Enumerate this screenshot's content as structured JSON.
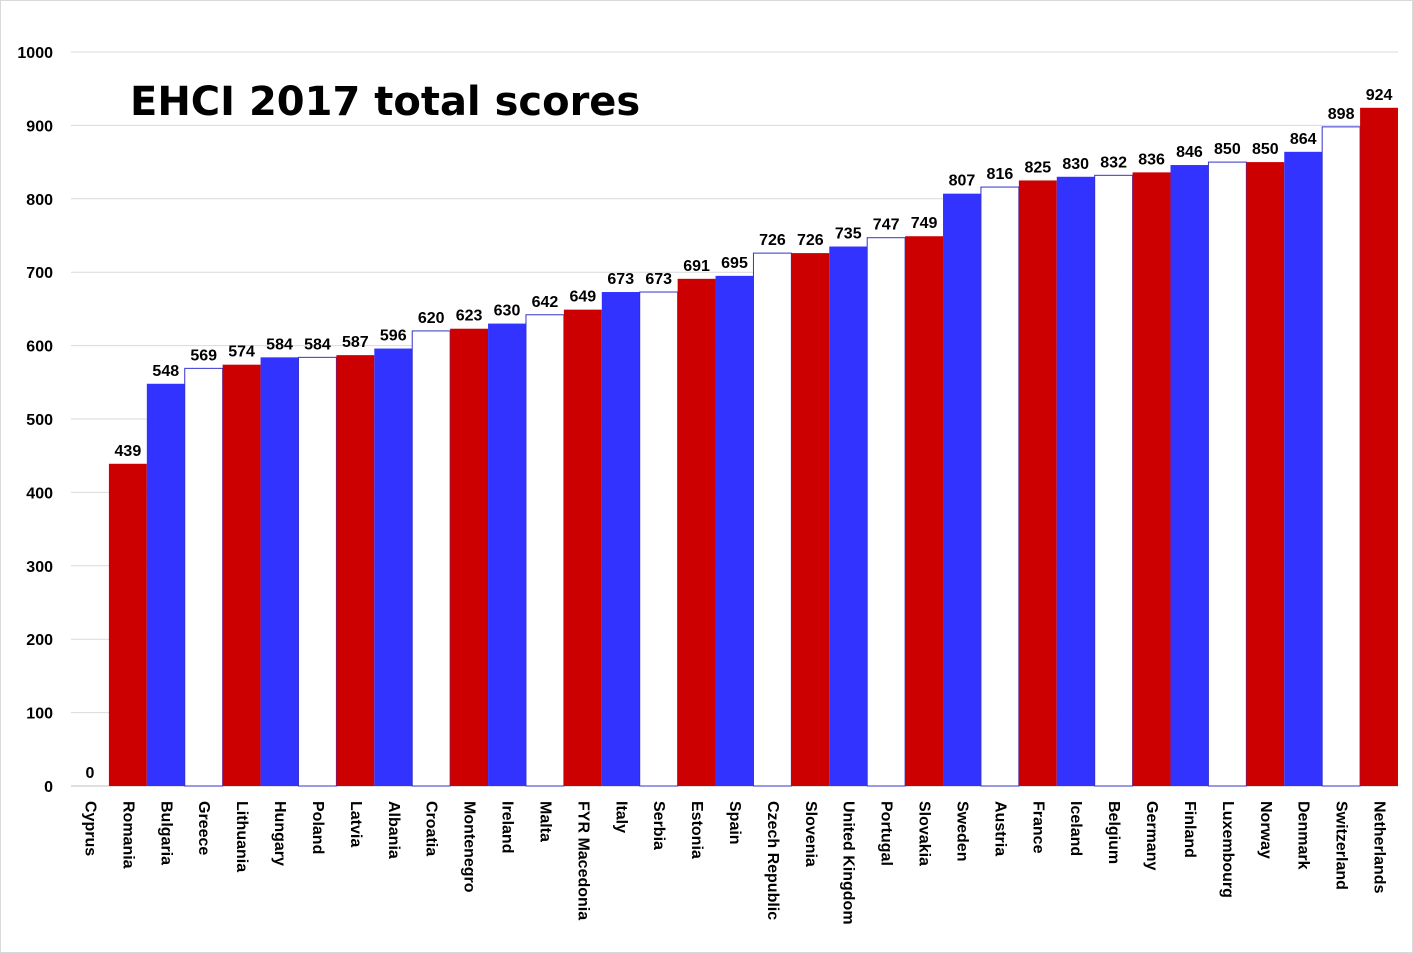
{
  "chart_data": {
    "type": "bar",
    "title": "EHCI 2017 total scores",
    "xlabel": "",
    "ylabel": "",
    "ylim": [
      0,
      1000
    ],
    "yticks": [
      0,
      100,
      200,
      300,
      400,
      500,
      600,
      700,
      800,
      900,
      1000
    ],
    "grid": true,
    "legend": "none",
    "colors": {
      "red": "#cc0000",
      "blue": "#3333ff",
      "white": "#ffffff",
      "white_outline": "#3333cc",
      "grid": "#d9d9d9"
    },
    "categories": [
      "Cyprus",
      "Romania",
      "Bulgaria",
      "Greece",
      "Lithuania",
      "Hungary",
      "Poland",
      "Latvia",
      "Albania",
      "Croatia",
      "Montenegro",
      "Ireland",
      "Malta",
      "FYR Macedonia",
      "Italy",
      "Serbia",
      "Estonia",
      "Spain",
      "Czech Republic",
      "Slovenia",
      "United Kingdom",
      "Portugal",
      "Slovakia",
      "Sweden",
      "Austria",
      "France",
      "Iceland",
      "Belgium",
      "Germany",
      "Finland",
      "Luxembourg",
      "Norway",
      "Denmark",
      "Switzerland",
      "Netherlands"
    ],
    "values": [
      0,
      439,
      548,
      569,
      574,
      584,
      584,
      587,
      596,
      620,
      623,
      630,
      642,
      649,
      673,
      673,
      691,
      695,
      726,
      726,
      735,
      747,
      749,
      807,
      816,
      825,
      830,
      832,
      836,
      846,
      850,
      850,
      864,
      898,
      924
    ],
    "bar_colors": [
      "white",
      "red",
      "blue",
      "white",
      "red",
      "blue",
      "white",
      "red",
      "blue",
      "white",
      "red",
      "blue",
      "white",
      "red",
      "blue",
      "white",
      "red",
      "blue",
      "white",
      "red",
      "blue",
      "white",
      "red",
      "blue",
      "white",
      "red",
      "blue",
      "white",
      "red",
      "blue",
      "white",
      "red",
      "blue",
      "white",
      "red"
    ]
  }
}
